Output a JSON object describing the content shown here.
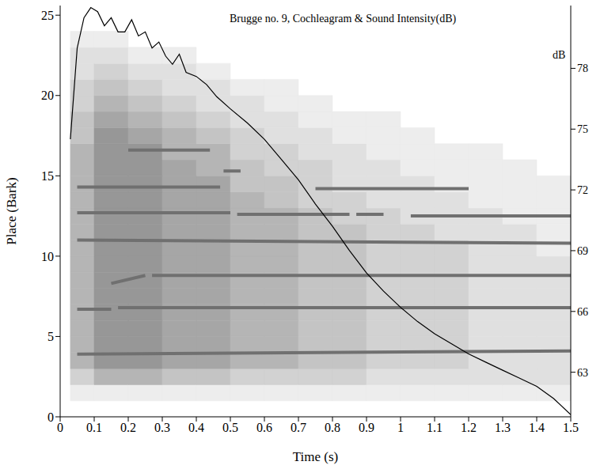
{
  "chart_data": {
    "type": "heatmap",
    "title": "Brugge no. 9, Cochleagram & Sound Intensity(dB)",
    "x_label": "Time (s)",
    "y_label": "Place (Bark)",
    "y2_label": "dB",
    "xlim": [
      0,
      1.5
    ],
    "xticks": [
      0,
      0.1,
      0.2,
      0.3,
      0.4,
      0.5,
      0.6,
      0.7,
      0.8,
      0.9,
      1,
      1.1,
      1.2,
      1.3,
      1.4,
      1.5
    ],
    "ylim": [
      0,
      25.6
    ],
    "yticks": [
      0,
      5,
      10,
      15,
      20,
      25
    ],
    "y2lim": [
      60.8,
      81.1
    ],
    "y2ticks": [
      63,
      66,
      69,
      72,
      75,
      78
    ],
    "cells": {
      "time_edges": [
        0.03,
        0.1,
        0.2,
        0.3,
        0.4,
        0.5,
        0.6,
        0.7,
        0.8,
        0.9,
        1,
        1.1,
        1.2,
        1.3,
        1.4,
        1.5
      ],
      "place_edges": [
        0,
        1,
        2,
        3,
        4,
        5,
        6,
        7,
        8,
        9,
        10,
        11,
        12,
        13,
        14,
        15,
        16,
        17,
        18,
        19,
        20,
        21,
        22,
        23,
        24,
        25
      ],
      "levels": [
        [
          0,
          1,
          3,
          5,
          5,
          5,
          5,
          5,
          5,
          5,
          5,
          5,
          5,
          5,
          5,
          5,
          5,
          4,
          4,
          3,
          3,
          2,
          2,
          1,
          0
        ],
        [
          0,
          1,
          5,
          7,
          7,
          7,
          7,
          7,
          7,
          7,
          7,
          7,
          7,
          7,
          7,
          7,
          7,
          7,
          6,
          5,
          4,
          3,
          2,
          1,
          0
        ],
        [
          0,
          1,
          5,
          7,
          7,
          7,
          7,
          7,
          7,
          7,
          7,
          7,
          7,
          7,
          7,
          7,
          7,
          6,
          5,
          4,
          3,
          2,
          1,
          0,
          0
        ],
        [
          0,
          1,
          4,
          6,
          6,
          6,
          6,
          6,
          6,
          6,
          6,
          6,
          6,
          6,
          6,
          6,
          5,
          5,
          4,
          3,
          2,
          2,
          1,
          0,
          0
        ],
        [
          0,
          1,
          4,
          6,
          6,
          6,
          6,
          6,
          6,
          6,
          6,
          6,
          6,
          6,
          6,
          5,
          5,
          4,
          3,
          2,
          2,
          1,
          0,
          0,
          0
        ],
        [
          0,
          1,
          3,
          5,
          5,
          5,
          5,
          5,
          5,
          5,
          5,
          5,
          5,
          5,
          4,
          4,
          3,
          3,
          2,
          2,
          1,
          0,
          0,
          0,
          0
        ],
        [
          0,
          1,
          3,
          5,
          5,
          5,
          5,
          5,
          5,
          5,
          5,
          5,
          5,
          4,
          4,
          3,
          3,
          2,
          2,
          1,
          1,
          0,
          0,
          0,
          0
        ],
        [
          0,
          1,
          3,
          4,
          4,
          4,
          4,
          4,
          4,
          4,
          4,
          4,
          4,
          3,
          3,
          3,
          2,
          2,
          1,
          1,
          0,
          0,
          0,
          0,
          0
        ],
        [
          0,
          1,
          3,
          4,
          4,
          4,
          4,
          4,
          4,
          4,
          4,
          4,
          3,
          3,
          2,
          2,
          2,
          1,
          1,
          0,
          0,
          0,
          0,
          0,
          0
        ],
        [
          0,
          1,
          2,
          3,
          3,
          3,
          3,
          3,
          3,
          3,
          3,
          3,
          3,
          2,
          2,
          2,
          1,
          1,
          1,
          0,
          0,
          0,
          0,
          0,
          0
        ],
        [
          0,
          1,
          2,
          3,
          3,
          3,
          3,
          3,
          3,
          3,
          3,
          3,
          2,
          2,
          2,
          1,
          1,
          1,
          0,
          0,
          0,
          0,
          0,
          0,
          0
        ],
        [
          0,
          1,
          2,
          3,
          3,
          3,
          3,
          3,
          3,
          3,
          3,
          2,
          2,
          2,
          1,
          1,
          1,
          0,
          0,
          0,
          0,
          0,
          0,
          0,
          0
        ],
        [
          0,
          1,
          2,
          2,
          2,
          2,
          2,
          2,
          2,
          2,
          2,
          2,
          2,
          1,
          1,
          1,
          1,
          0,
          0,
          0,
          0,
          0,
          0,
          0,
          0
        ],
        [
          0,
          1,
          2,
          2,
          2,
          2,
          2,
          2,
          2,
          2,
          2,
          2,
          1,
          1,
          1,
          1,
          0,
          0,
          0,
          0,
          0,
          0,
          0,
          0,
          0
        ],
        [
          0,
          1,
          2,
          2,
          2,
          2,
          2,
          2,
          2,
          2,
          1,
          1,
          1,
          1,
          1,
          0,
          0,
          0,
          0,
          0,
          0,
          0,
          0,
          0,
          0
        ]
      ]
    },
    "tracks": [
      {
        "x": [
          0.05,
          1.5
        ],
        "values": [
          3.9,
          4.1
        ],
        "color": "#707070"
      },
      {
        "x": [
          0.05,
          0.15
        ],
        "values": [
          6.7,
          6.7
        ],
        "color": "#707070"
      },
      {
        "x": [
          0.17,
          1.5
        ],
        "values": [
          6.8,
          6.8
        ],
        "color": "#707070"
      },
      {
        "x": [
          0.15,
          0.25
        ],
        "values": [
          8.3,
          8.8
        ],
        "color": "#707070"
      },
      {
        "x": [
          0.27,
          1.5
        ],
        "values": [
          8.8,
          8.8
        ],
        "color": "#707070"
      },
      {
        "x": [
          0.05,
          1.5
        ],
        "values": [
          11.0,
          10.8
        ],
        "color": "#707070"
      },
      {
        "x": [
          0.05,
          0.5
        ],
        "values": [
          12.7,
          12.7
        ],
        "color": "#707070"
      },
      {
        "x": [
          0.52,
          0.85
        ],
        "values": [
          12.6,
          12.6
        ],
        "color": "#707070"
      },
      {
        "x": [
          0.87,
          0.95
        ],
        "values": [
          12.6,
          12.6
        ],
        "color": "#707070"
      },
      {
        "x": [
          1.03,
          1.5
        ],
        "values": [
          12.5,
          12.5
        ],
        "color": "#707070"
      },
      {
        "x": [
          0.05,
          0.47
        ],
        "values": [
          14.3,
          14.3
        ],
        "color": "#707070"
      },
      {
        "x": [
          0.75,
          1.2
        ],
        "values": [
          14.2,
          14.2
        ],
        "color": "#707070"
      },
      {
        "x": [
          0.48,
          0.53
        ],
        "values": [
          15.3,
          15.3
        ],
        "color": "#707070"
      },
      {
        "x": [
          0.2,
          0.44
        ],
        "values": [
          16.6,
          16.6
        ],
        "color": "#707070"
      }
    ],
    "series": [
      {
        "type": "line",
        "axis": "y2",
        "color": "#000000",
        "x": [
          0.03,
          0.05,
          0.07,
          0.09,
          0.11,
          0.13,
          0.15,
          0.17,
          0.19,
          0.21,
          0.23,
          0.25,
          0.27,
          0.29,
          0.31,
          0.33,
          0.35,
          0.37,
          0.4,
          0.43,
          0.46,
          0.5,
          0.55,
          0.6,
          0.65,
          0.7,
          0.75,
          0.8,
          0.85,
          0.9,
          0.95,
          1,
          1.05,
          1.1,
          1.15,
          1.2,
          1.25,
          1.3,
          1.35,
          1.4,
          1.45,
          1.5
        ],
        "values": [
          74.5,
          79.0,
          80.5,
          81.0,
          80.8,
          80.1,
          80.5,
          79.8,
          79.8,
          80.4,
          79.6,
          79.8,
          79.0,
          79.3,
          78.6,
          78.2,
          78.7,
          77.8,
          77.6,
          77.2,
          76.6,
          76.0,
          75.3,
          74.5,
          73.5,
          72.5,
          71.3,
          70.2,
          69.0,
          67.9,
          67.0,
          66.2,
          65.5,
          64.9,
          64.4,
          63.9,
          63.5,
          63.1,
          62.7,
          62.3,
          61.7,
          60.9
        ]
      }
    ]
  }
}
